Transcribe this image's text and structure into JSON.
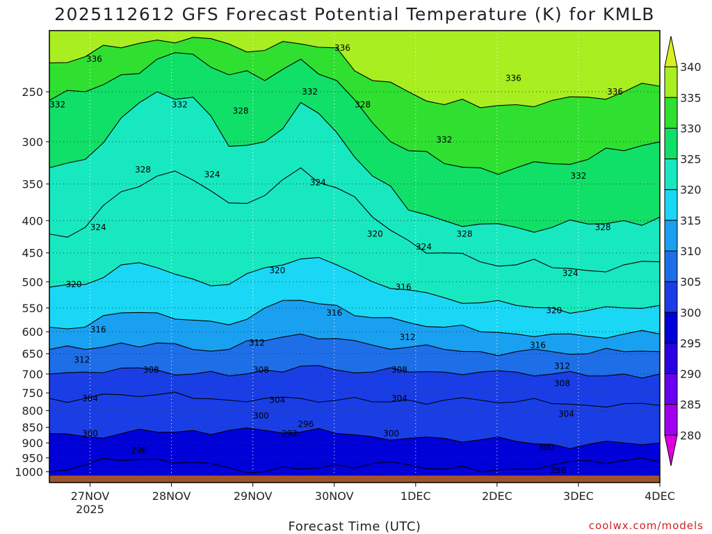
{
  "chart_data": {
    "type": "heatmap",
    "title": "2025112612 GFS Forecast Potential Temperature (K) for KMLB",
    "xlabel": "Forecast Time (UTC)",
    "ylabel": "",
    "credit": "coolwx.com/models",
    "y_scale": "log-pressure",
    "y_inverted": true,
    "ylim": [
      1040,
      200
    ],
    "y_ticks": [
      "250",
      "300",
      "350",
      "400",
      "450",
      "500",
      "550",
      "600",
      "650",
      "700",
      "750",
      "800",
      "850",
      "900",
      "950",
      "1000"
    ],
    "x_ticks": [
      {
        "label": "27NOV",
        "sub": "2025"
      },
      {
        "label": "28NOV",
        "sub": ""
      },
      {
        "label": "29NOV",
        "sub": ""
      },
      {
        "label": "30NOV",
        "sub": ""
      },
      {
        "label": "1DEC",
        "sub": ""
      },
      {
        "label": "2DEC",
        "sub": ""
      },
      {
        "label": "3DEC",
        "sub": ""
      },
      {
        "label": "4DEC",
        "sub": ""
      }
    ],
    "x_tick_days": [
      0.5,
      1.5,
      2.5,
      3.5,
      4.5,
      5.5,
      6.5,
      7.5
    ],
    "xlim_days": [
      0,
      7.5
    ],
    "grid": true,
    "colorbar": {
      "ticks": [
        "340",
        "335",
        "330",
        "325",
        "320",
        "315",
        "310",
        "305",
        "300",
        "295",
        "290",
        "285",
        "280"
      ],
      "levels": [
        280,
        285,
        290,
        295,
        300,
        305,
        310,
        315,
        320,
        325,
        330,
        335,
        340
      ],
      "colors": [
        "#dd00dd",
        "#a000f0",
        "#6a00f0",
        "#2a00e0",
        "#0000d8",
        "#1a3ee6",
        "#1e6ee8",
        "#1aa0f0",
        "#1ad8f5",
        "#18e8c0",
        "#10e068",
        "#30e030",
        "#a8ee20",
        "#d8f020"
      ]
    },
    "ground_color": "#a0522d",
    "series": [
      {
        "level": 296,
        "p": [
          1000,
          975,
          960,
          955,
          965,
          985,
          1000,
          990,
          975,
          970,
          975,
          990,
          1000,
          990,
          975,
          960,
          960,
          965
        ]
      },
      {
        "level": 300,
        "p": [
          870,
          880,
          870,
          865,
          860,
          860,
          860,
          865,
          870,
          880,
          885,
          885,
          890,
          895,
          905,
          905,
          900,
          900
        ]
      },
      {
        "level": 304,
        "p": [
          765,
          765,
          755,
          755,
          765,
          770,
          765,
          765,
          770,
          775,
          770,
          770,
          770,
          775,
          780,
          785,
          780,
          785
        ]
      },
      {
        "level": 308,
        "p": [
          700,
          695,
          685,
          690,
          700,
          705,
          690,
          680,
          690,
          695,
          695,
          695,
          695,
          695,
          700,
          705,
          700,
          700
        ]
      },
      {
        "level": 312,
        "p": [
          640,
          640,
          625,
          625,
          640,
          640,
          620,
          605,
          615,
          630,
          635,
          640,
          645,
          645,
          645,
          650,
          645,
          645
        ]
      },
      {
        "level": 316,
        "p": [
          590,
          590,
          560,
          560,
          575,
          585,
          550,
          535,
          545,
          570,
          580,
          590,
          600,
          605,
          605,
          610,
          605,
          605
        ]
      },
      {
        "level": 320,
        "p": [
          510,
          505,
          470,
          475,
          495,
          505,
          475,
          460,
          470,
          500,
          515,
          530,
          540,
          545,
          550,
          555,
          550,
          545
        ]
      },
      {
        "level": 324,
        "p": [
          420,
          410,
          360,
          340,
          345,
          375,
          365,
          330,
          355,
          395,
          430,
          450,
          465,
          470,
          475,
          480,
          470,
          465
        ]
      },
      {
        "level": 328,
        "p": [
          330,
          320,
          275,
          250,
          255,
          305,
          300,
          260,
          290,
          340,
          385,
          400,
          405,
          410,
          410,
          405,
          400,
          395
        ]
      },
      {
        "level": 332,
        "p": [
          258,
          250,
          235,
          222,
          218,
          235,
          240,
          222,
          240,
          280,
          310,
          325,
          330,
          330,
          325,
          320,
          310,
          300
        ]
      },
      {
        "level": 336,
        "p": [
          225,
          220,
          213,
          207,
          205,
          210,
          215,
          210,
          213,
          240,
          250,
          262,
          265,
          262,
          258,
          255,
          250,
          245
        ]
      }
    ],
    "contour_labels": [
      {
        "text": "336",
        "x_day": 0.55,
        "p": 222
      },
      {
        "text": "336",
        "x_day": 3.6,
        "p": 213
      },
      {
        "text": "336",
        "x_day": 5.7,
        "p": 238
      },
      {
        "text": "336",
        "x_day": 6.95,
        "p": 250
      },
      {
        "text": "332",
        "x_day": 0.1,
        "p": 262
      },
      {
        "text": "332",
        "x_day": 1.6,
        "p": 262
      },
      {
        "text": "332",
        "x_day": 3.2,
        "p": 250
      },
      {
        "text": "332",
        "x_day": 4.85,
        "p": 298
      },
      {
        "text": "332",
        "x_day": 6.5,
        "p": 340
      },
      {
        "text": "328",
        "x_day": 2.35,
        "p": 268
      },
      {
        "text": "328",
        "x_day": 3.85,
        "p": 262
      },
      {
        "text": "328",
        "x_day": 1.15,
        "p": 332
      },
      {
        "text": "328",
        "x_day": 5.1,
        "p": 420
      },
      {
        "text": "328",
        "x_day": 6.8,
        "p": 410
      },
      {
        "text": "324",
        "x_day": 2.0,
        "p": 338
      },
      {
        "text": "324",
        "x_day": 3.3,
        "p": 348
      },
      {
        "text": "324",
        "x_day": 0.6,
        "p": 410
      },
      {
        "text": "324",
        "x_day": 4.6,
        "p": 440
      },
      {
        "text": "324",
        "x_day": 6.4,
        "p": 485
      },
      {
        "text": "320",
        "x_day": 2.8,
        "p": 480
      },
      {
        "text": "320",
        "x_day": 4.0,
        "p": 420
      },
      {
        "text": "320",
        "x_day": 0.3,
        "p": 505
      },
      {
        "text": "320",
        "x_day": 6.2,
        "p": 555
      },
      {
        "text": "316",
        "x_day": 3.5,
        "p": 560
      },
      {
        "text": "316",
        "x_day": 4.35,
        "p": 510
      },
      {
        "text": "316",
        "x_day": 0.6,
        "p": 595
      },
      {
        "text": "316",
        "x_day": 6.0,
        "p": 630
      },
      {
        "text": "312",
        "x_day": 2.55,
        "p": 625
      },
      {
        "text": "312",
        "x_day": 4.4,
        "p": 612
      },
      {
        "text": "312",
        "x_day": 0.4,
        "p": 665
      },
      {
        "text": "312",
        "x_day": 6.3,
        "p": 680
      },
      {
        "text": "308",
        "x_day": 1.25,
        "p": 690
      },
      {
        "text": "308",
        "x_day": 2.6,
        "p": 690
      },
      {
        "text": "308",
        "x_day": 4.3,
        "p": 690
      },
      {
        "text": "308",
        "x_day": 6.3,
        "p": 725
      },
      {
        "text": "304",
        "x_day": 0.5,
        "p": 765
      },
      {
        "text": "304",
        "x_day": 2.8,
        "p": 770
      },
      {
        "text": "304",
        "x_day": 4.3,
        "p": 765
      },
      {
        "text": "304",
        "x_day": 6.35,
        "p": 810
      },
      {
        "text": "300",
        "x_day": 0.5,
        "p": 870
      },
      {
        "text": "300",
        "x_day": 2.6,
        "p": 815
      },
      {
        "text": "300",
        "x_day": 4.2,
        "p": 870
      },
      {
        "text": "300",
        "x_day": 6.1,
        "p": 915
      },
      {
        "text": "296",
        "x_day": 1.1,
        "p": 925
      },
      {
        "text": "296",
        "x_day": 3.15,
        "p": 840
      },
      {
        "text": "296",
        "x_day": 6.25,
        "p": 995
      },
      {
        "text": "292",
        "x_day": 2.95,
        "p": 870
      }
    ]
  }
}
